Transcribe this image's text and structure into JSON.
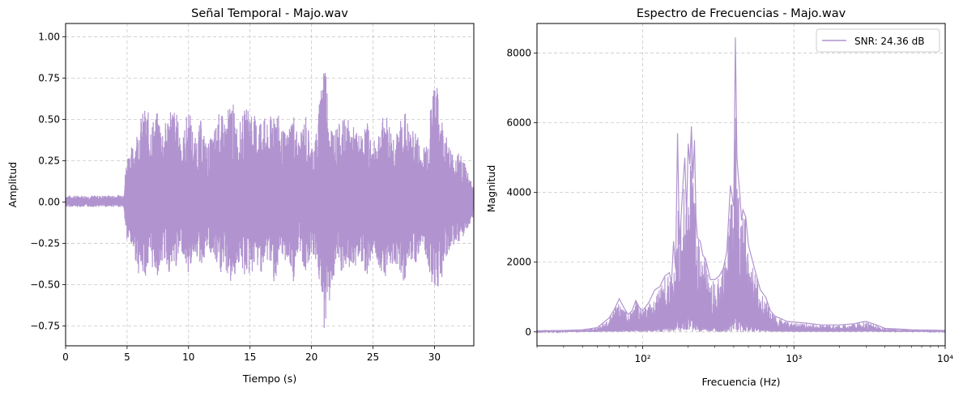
{
  "chart_data": [
    {
      "type": "line",
      "title": "Señal Temporal - Majo.wav",
      "xlabel": "Tiempo (s)",
      "ylabel": "Amplitud",
      "xlim": [
        0,
        33.2
      ],
      "ylim": [
        -0.87,
        1.08
      ],
      "x_ticks": [
        0,
        5,
        10,
        15,
        20,
        25,
        30
      ],
      "x_tick_labels": [
        "0",
        "5",
        "10",
        "15",
        "20",
        "25",
        "30"
      ],
      "y_ticks": [
        -0.75,
        -0.5,
        -0.25,
        0.0,
        0.25,
        0.5,
        0.75,
        1.0
      ],
      "y_tick_labels": [
        "−0.75",
        "−0.50",
        "−0.25",
        "0.00",
        "0.25",
        "0.50",
        "0.75",
        "1.00"
      ],
      "grid": true,
      "color": "#b194cf",
      "series": [
        {
          "x": [
            0,
            2,
            4,
            4.7,
            5,
            5.5,
            6,
            6.5,
            7,
            7.5,
            8,
            8.5,
            9,
            9.5,
            10,
            10.5,
            11,
            11.5,
            12,
            12.5,
            13,
            13.5,
            14,
            14.5,
            15,
            15.5,
            16,
            16.5,
            17,
            17.5,
            18,
            18.5,
            19,
            19.5,
            20,
            20.5,
            21,
            21.5,
            22,
            22.5,
            23,
            23.5,
            24,
            24.5,
            25,
            25.5,
            26,
            26.5,
            27,
            27.5,
            28,
            28.5,
            29,
            29.5,
            30,
            30.5,
            31,
            31.5,
            32,
            32.5,
            33.2
          ],
          "upper": [
            0.04,
            0.04,
            0.04,
            0.05,
            0.3,
            0.35,
            0.5,
            0.58,
            0.5,
            0.55,
            0.45,
            0.6,
            0.55,
            0.38,
            0.6,
            0.38,
            0.5,
            0.35,
            0.42,
            0.55,
            0.5,
            0.65,
            0.45,
            0.55,
            0.6,
            0.5,
            0.55,
            0.45,
            0.65,
            0.45,
            0.42,
            0.57,
            0.37,
            0.55,
            0.35,
            0.46,
            1.0,
            0.5,
            0.45,
            0.5,
            0.5,
            0.45,
            0.4,
            0.5,
            0.35,
            0.46,
            0.55,
            0.45,
            0.42,
            0.6,
            0.42,
            0.45,
            0.3,
            0.45,
            0.8,
            0.55,
            0.4,
            0.3,
            0.3,
            0.25,
            0.08
          ],
          "lower": [
            -0.03,
            -0.03,
            -0.03,
            -0.03,
            -0.25,
            -0.3,
            -0.45,
            -0.45,
            -0.4,
            -0.45,
            -0.35,
            -0.45,
            -0.4,
            -0.3,
            -0.45,
            -0.3,
            -0.4,
            -0.3,
            -0.35,
            -0.45,
            -0.42,
            -0.52,
            -0.38,
            -0.45,
            -0.45,
            -0.4,
            -0.43,
            -0.35,
            -0.5,
            -0.38,
            -0.35,
            -0.5,
            -0.3,
            -0.44,
            -0.3,
            -0.4,
            -0.78,
            -0.6,
            -0.4,
            -0.45,
            -0.42,
            -0.4,
            -0.35,
            -0.45,
            -0.3,
            -0.4,
            -0.45,
            -0.38,
            -0.38,
            -0.5,
            -0.35,
            -0.38,
            -0.25,
            -0.4,
            -0.55,
            -0.5,
            -0.35,
            -0.25,
            -0.3,
            -0.2,
            -0.08
          ]
        }
      ]
    },
    {
      "type": "line",
      "title": "Espectro de Frecuencias - Majo.wav",
      "xlabel": "Frecuencia (Hz)",
      "ylabel": "Magnitud",
      "xscale": "log",
      "xlim": [
        20,
        10000
      ],
      "ylim": [
        -400,
        8850
      ],
      "x_ticks": [
        100,
        1000,
        10000
      ],
      "x_tick_labels": [
        "10²",
        "10³",
        "10⁴"
      ],
      "y_ticks": [
        0,
        2000,
        4000,
        6000,
        8000
      ],
      "y_tick_labels": [
        "0",
        "2000",
        "4000",
        "6000",
        "8000"
      ],
      "grid": true,
      "color": "#b194cf",
      "legend": {
        "position": "top-right",
        "entries": [
          "SNR: 24.36 dB"
        ]
      },
      "series": [
        {
          "name": "SNR: 24.36 dB",
          "x": [
            20,
            30,
            40,
            50,
            60,
            65,
            70,
            75,
            80,
            85,
            90,
            95,
            100,
            110,
            120,
            130,
            140,
            150,
            155,
            160,
            165,
            170,
            175,
            180,
            185,
            190,
            195,
            200,
            205,
            210,
            215,
            220,
            225,
            230,
            240,
            250,
            260,
            270,
            280,
            300,
            320,
            340,
            360,
            380,
            400,
            410,
            420,
            430,
            440,
            450,
            460,
            480,
            500,
            520,
            550,
            600,
            650,
            700,
            750,
            800,
            900,
            1000,
            1200,
            1500,
            2000,
            2500,
            2800,
            3000,
            3500,
            4000,
            5000,
            6000,
            8000,
            10000
          ],
          "y": [
            30,
            40,
            60,
            120,
            400,
            650,
            950,
            700,
            500,
            600,
            900,
            700,
            600,
            850,
            1200,
            1300,
            1600,
            1700,
            1400,
            2600,
            1800,
            5700,
            2500,
            3400,
            4300,
            5000,
            3300,
            5400,
            4800,
            5900,
            4400,
            5500,
            3300,
            2700,
            2600,
            2200,
            2100,
            1800,
            1500,
            1500,
            1600,
            1800,
            2300,
            4200,
            3600,
            8450,
            5000,
            4400,
            3900,
            3200,
            3500,
            3300,
            2500,
            2200,
            1800,
            1200,
            1000,
            600,
            450,
            400,
            300,
            280,
            250,
            200,
            200,
            230,
            280,
            300,
            200,
            100,
            80,
            60,
            50,
            40
          ],
          "lower": [
            0,
            0,
            0,
            0,
            0,
            0,
            0,
            0,
            0,
            0,
            0,
            0,
            0,
            0,
            0,
            0,
            0,
            0,
            0,
            0,
            0,
            0,
            0,
            0,
            0,
            0,
            0,
            0,
            0,
            0,
            0,
            0,
            0,
            0,
            0,
            0,
            0,
            0,
            0,
            0,
            0,
            0,
            0,
            0,
            0,
            0,
            0,
            0,
            0,
            0,
            0,
            0,
            0,
            0,
            0,
            0,
            0,
            0,
            0,
            0,
            0,
            0,
            0,
            0,
            0,
            0,
            0,
            0,
            0,
            0,
            0,
            0,
            0,
            0
          ]
        }
      ]
    }
  ]
}
